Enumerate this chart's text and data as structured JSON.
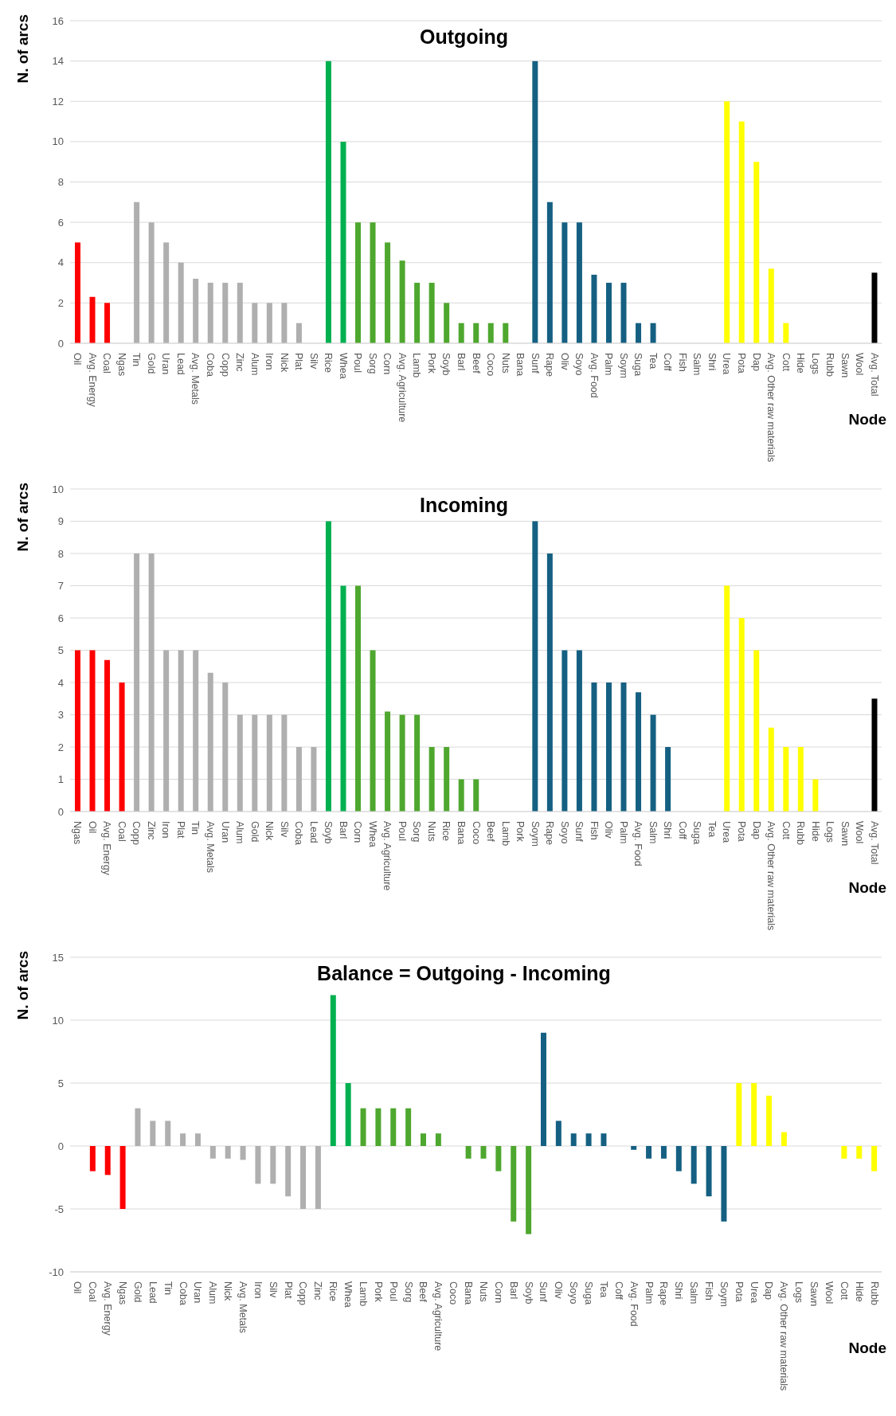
{
  "chart_data": [
    {
      "type": "bar",
      "title": "Outgoing",
      "xlabel": "Node",
      "ylabel": "N. of arcs",
      "ylim": [
        0,
        16
      ],
      "yticks": [
        0,
        2,
        4,
        6,
        8,
        10,
        12,
        14,
        16
      ],
      "grid": "y",
      "categories": [
        "Oil",
        "Avg. Energy",
        "Coal",
        "Ngas",
        "Tin",
        "Gold",
        "Uran",
        "Lead",
        "Avg. Metals",
        "Coba",
        "Copp",
        "Zinc",
        "Alum",
        "Iron",
        "Nick",
        "Plat",
        "Silv",
        "Rice",
        "Whea",
        "Poul",
        "Sorg",
        "Corn",
        "Avg. Agriculture",
        "Lamb",
        "Pork",
        "Soyb",
        "Barl",
        "Beef",
        "Coco",
        "Nuts",
        "Bana",
        "Sunf",
        "Rape",
        "Oliv",
        "Soyo",
        "Avg. Food",
        "Palm",
        "Soym",
        "Suga",
        "Tea",
        "Coff",
        "Fish",
        "Salm",
        "Shri",
        "Urea",
        "Pota",
        "Dap",
        "Avg. Other raw materials",
        "Cott",
        "Hide",
        "Logs",
        "Rubb",
        "Sawn",
        "Wool",
        "Avg. Total"
      ],
      "values": [
        5,
        2.3,
        2,
        0,
        7,
        6,
        5,
        4,
        3.2,
        3,
        3,
        3,
        2,
        2,
        2,
        1,
        0,
        14,
        10,
        6,
        6,
        5,
        4.1,
        3,
        3,
        2,
        1,
        1,
        1,
        1,
        0,
        14,
        7,
        6,
        6,
        3.4,
        3,
        3,
        1,
        1,
        0,
        0,
        0,
        0,
        12,
        11,
        9,
        3.7,
        1,
        0,
        0,
        0,
        0,
        0,
        3.5
      ],
      "colors": [
        "#ff0000",
        "#ff0000",
        "#ff0000",
        "#ff0000",
        "#afafaf",
        "#afafaf",
        "#afafaf",
        "#afafaf",
        "#afafaf",
        "#afafaf",
        "#afafaf",
        "#afafaf",
        "#afafaf",
        "#afafaf",
        "#afafaf",
        "#afafaf",
        "#afafaf",
        "#00b050",
        "#00b050",
        "#4ea72e",
        "#4ea72e",
        "#4ea72e",
        "#4ea72e",
        "#4ea72e",
        "#4ea72e",
        "#4ea72e",
        "#4ea72e",
        "#4ea72e",
        "#4ea72e",
        "#4ea72e",
        "#4ea72e",
        "#156082",
        "#156082",
        "#156082",
        "#156082",
        "#156082",
        "#156082",
        "#156082",
        "#156082",
        "#156082",
        "#156082",
        "#156082",
        "#156082",
        "#156082",
        "#ffff00",
        "#ffff00",
        "#ffff00",
        "#ffff00",
        "#ffff00",
        "#ffff00",
        "#ffff00",
        "#ffff00",
        "#ffff00",
        "#ffff00",
        "#000000"
      ]
    },
    {
      "type": "bar",
      "title": "Incoming",
      "xlabel": "Node",
      "ylabel": "N. of arcs",
      "ylim": [
        0,
        10
      ],
      "yticks": [
        0,
        1,
        2,
        3,
        4,
        5,
        6,
        7,
        8,
        9,
        10
      ],
      "grid": "y",
      "categories": [
        "Ngas",
        "Oil",
        "Avg. Energy",
        "Coal",
        "Copp",
        "Zinc",
        "Iron",
        "Plat",
        "Tin",
        "Avg. Metals",
        "Uran",
        "Alum",
        "Gold",
        "Nick",
        "Silv",
        "Coba",
        "Lead",
        "Soyb",
        "Barl",
        "Corn",
        "Whea",
        "Avg. Agriculture",
        "Poul",
        "Sorg",
        "Nuts",
        "Rice",
        "Bana",
        "Coco",
        "Beef",
        "Lamb",
        "Pork",
        "Soym",
        "Rape",
        "Soyo",
        "Sunf",
        "Fish",
        "Oliv",
        "Palm",
        "Avg. Food",
        "Salm",
        "Shri",
        "Coff",
        "Suga",
        "Tea",
        "Urea",
        "Pota",
        "Dap",
        "Avg. Other raw materials",
        "Cott",
        "Rubb",
        "Hide",
        "Logs",
        "Sawn",
        "Wool",
        "Avg. Total"
      ],
      "values": [
        5,
        5,
        4.7,
        4,
        8,
        8,
        5,
        5,
        5,
        4.3,
        4,
        3,
        3,
        3,
        3,
        2,
        2,
        9,
        7,
        7,
        5,
        3.1,
        3,
        3,
        2,
        2,
        1,
        1,
        0,
        0,
        0,
        9,
        8,
        5,
        5,
        4,
        4,
        4,
        3.7,
        3,
        2,
        0,
        0,
        0,
        7,
        6,
        5,
        2.6,
        2,
        2,
        1,
        0,
        0,
        0,
        3.5
      ],
      "colors": [
        "#ff0000",
        "#ff0000",
        "#ff0000",
        "#ff0000",
        "#afafaf",
        "#afafaf",
        "#afafaf",
        "#afafaf",
        "#afafaf",
        "#afafaf",
        "#afafaf",
        "#afafaf",
        "#afafaf",
        "#afafaf",
        "#afafaf",
        "#afafaf",
        "#afafaf",
        "#00b050",
        "#00b050",
        "#4ea72e",
        "#4ea72e",
        "#4ea72e",
        "#4ea72e",
        "#4ea72e",
        "#4ea72e",
        "#4ea72e",
        "#4ea72e",
        "#4ea72e",
        "#4ea72e",
        "#4ea72e",
        "#4ea72e",
        "#156082",
        "#156082",
        "#156082",
        "#156082",
        "#156082",
        "#156082",
        "#156082",
        "#156082",
        "#156082",
        "#156082",
        "#156082",
        "#156082",
        "#156082",
        "#ffff00",
        "#ffff00",
        "#ffff00",
        "#ffff00",
        "#ffff00",
        "#ffff00",
        "#ffff00",
        "#ffff00",
        "#ffff00",
        "#ffff00",
        "#000000"
      ]
    },
    {
      "type": "bar",
      "title": "Balance = Outgoing - Incoming",
      "xlabel": "Node",
      "ylabel": "N. of arcs",
      "ylim": [
        -10,
        15
      ],
      "yticks": [
        -10,
        -5,
        0,
        5,
        10,
        15
      ],
      "grid": "y",
      "categories": [
        "Oil",
        "Coal",
        "Avg. Energy",
        "Ngas",
        "Gold",
        "Lead",
        "Tin",
        "Coba",
        "Uran",
        "Alum",
        "Nick",
        "Avg. Metals",
        "Iron",
        "Silv",
        "Plat",
        "Copp",
        "Zinc",
        "Rice",
        "Whea",
        "Lamb",
        "Pork",
        "Poul",
        "Sorg",
        "Beef",
        "Avg. Agriculture",
        "Coco",
        "Bana",
        "Nuts",
        "Corn",
        "Barl",
        "Soyb",
        "Sunf",
        "Oliv",
        "Soyo",
        "Suga",
        "Tea",
        "Coff",
        "Avg. Food",
        "Palm",
        "Rape",
        "Shri",
        "Salm",
        "Fish",
        "Soym",
        "Pota",
        "Urea",
        "Dap",
        "Avg. Other raw materials",
        "Logs",
        "Sawn",
        "Wool",
        "Cott",
        "Hide",
        "Rubb"
      ],
      "values": [
        0,
        -2,
        -2.3,
        -5,
        3,
        2,
        2,
        1,
        1,
        -1,
        -1,
        -1.1,
        -3,
        -3,
        -4,
        -5,
        -5,
        12,
        5,
        3,
        3,
        3,
        3,
        1,
        1,
        0,
        -1,
        -1,
        -2,
        -6,
        -7,
        9,
        2,
        1,
        1,
        1,
        0,
        -0.3,
        -1,
        -1,
        -2,
        -3,
        -4,
        -6,
        5,
        5,
        4,
        1.1,
        0,
        0,
        0,
        -1,
        -1,
        -2
      ],
      "colors": [
        "#ff0000",
        "#ff0000",
        "#ff0000",
        "#ff0000",
        "#afafaf",
        "#afafaf",
        "#afafaf",
        "#afafaf",
        "#afafaf",
        "#afafaf",
        "#afafaf",
        "#afafaf",
        "#afafaf",
        "#afafaf",
        "#afafaf",
        "#afafaf",
        "#afafaf",
        "#00b050",
        "#00b050",
        "#4ea72e",
        "#4ea72e",
        "#4ea72e",
        "#4ea72e",
        "#4ea72e",
        "#4ea72e",
        "#4ea72e",
        "#4ea72e",
        "#4ea72e",
        "#4ea72e",
        "#4ea72e",
        "#4ea72e",
        "#156082",
        "#156082",
        "#156082",
        "#156082",
        "#156082",
        "#156082",
        "#156082",
        "#156082",
        "#156082",
        "#156082",
        "#156082",
        "#156082",
        "#156082",
        "#ffff00",
        "#ffff00",
        "#ffff00",
        "#ffff00",
        "#ffff00",
        "#ffff00",
        "#ffff00",
        "#ffff00",
        "#ffff00",
        "#ffff00"
      ]
    }
  ]
}
